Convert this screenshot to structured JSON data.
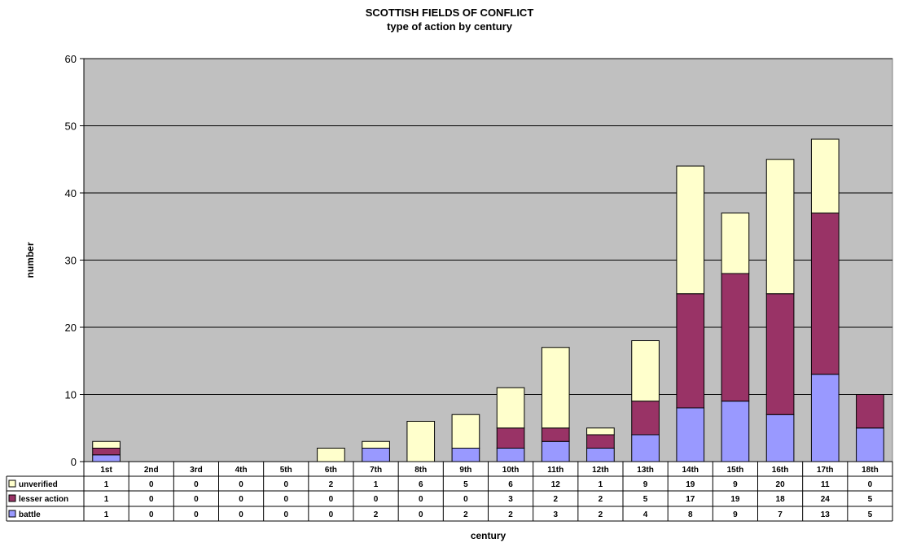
{
  "chart_data": {
    "type": "bar",
    "stacked": true,
    "title": "SCOTTISH FIELDS OF CONFLICT",
    "subtitle": "type of action by century",
    "xlabel": "century",
    "ylabel": "number",
    "ylim": [
      0,
      60
    ],
    "yticks": [
      0,
      10,
      20,
      30,
      40,
      50,
      60
    ],
    "grid": true,
    "legend_position": "data-table-left",
    "categories": [
      "1st",
      "2nd",
      "3rd",
      "4th",
      "5th",
      "6th",
      "7th",
      "8th",
      "9th",
      "10th",
      "11th",
      "12th",
      "13th",
      "14th",
      "15th",
      "16th",
      "17th",
      "18th"
    ],
    "series": [
      {
        "name": "unverified",
        "color": "#ffffcc",
        "values": [
          1,
          0,
          0,
          0,
          0,
          2,
          1,
          6,
          5,
          6,
          12,
          1,
          9,
          19,
          9,
          20,
          11,
          0
        ]
      },
      {
        "name": "lesser action",
        "color": "#993366",
        "values": [
          1,
          0,
          0,
          0,
          0,
          0,
          0,
          0,
          0,
          3,
          2,
          2,
          5,
          17,
          19,
          18,
          24,
          5
        ]
      },
      {
        "name": "battle",
        "color": "#9999ff",
        "values": [
          1,
          0,
          0,
          0,
          0,
          0,
          2,
          0,
          2,
          2,
          3,
          2,
          4,
          8,
          9,
          7,
          13,
          5
        ]
      }
    ],
    "plot_background": "#c0c0c0"
  }
}
